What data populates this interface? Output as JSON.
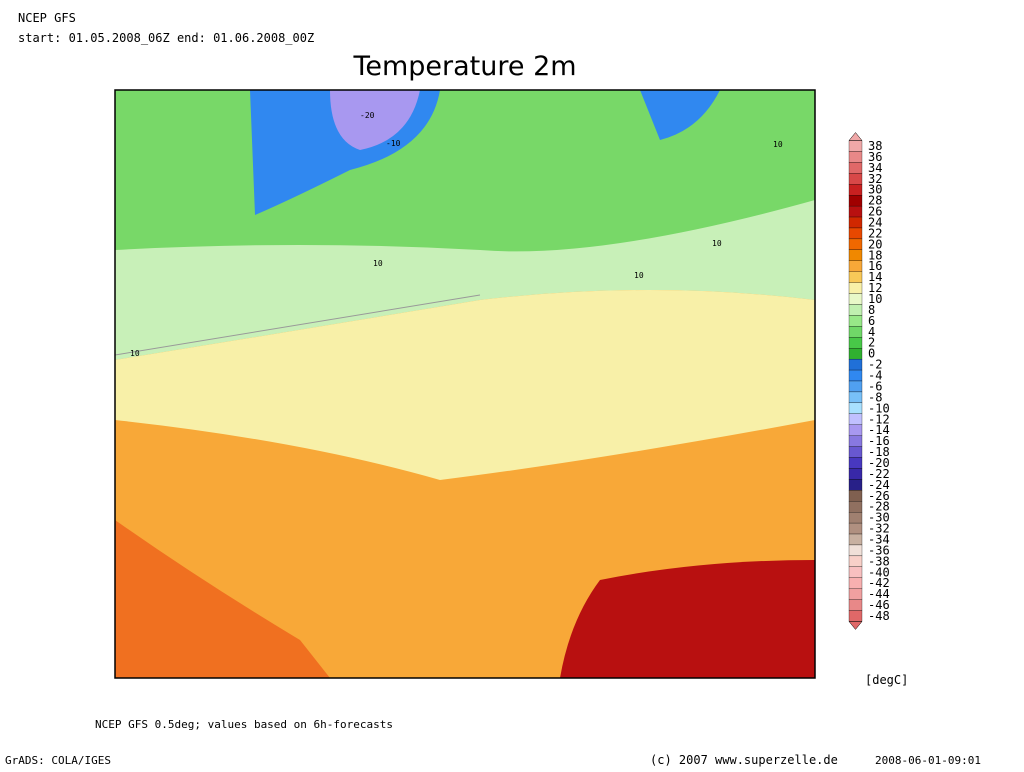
{
  "header": {
    "model": "NCEP GFS",
    "period": "start: 01.05.2008_06Z  end: 01.06.2008_00Z",
    "title": "Temperature 2m"
  },
  "colorbar": {
    "unit": "[degC]",
    "levels": [
      38,
      36,
      34,
      32,
      30,
      28,
      26,
      24,
      22,
      20,
      18,
      16,
      14,
      12,
      10,
      8,
      6,
      4,
      2,
      0,
      -2,
      -4,
      -6,
      -8,
      -10,
      -12,
      -14,
      -16,
      -18,
      -20,
      -22,
      -24,
      -26,
      -28,
      -30,
      -32,
      -34,
      -36,
      -38,
      -40,
      -42,
      -44,
      -46,
      -48
    ],
    "colors": [
      "#f0a8a8",
      "#e88888",
      "#e06868",
      "#d84848",
      "#c82020",
      "#a00000",
      "#b81010",
      "#d02800",
      "#e84800",
      "#f06800",
      "#f08800",
      "#f8a838",
      "#f8c858",
      "#f8f0a8",
      "#e8f8c8",
      "#c0f0b0",
      "#98e888",
      "#70d868",
      "#48c848",
      "#30b030",
      "#2070d8",
      "#3088f0",
      "#50a0f0",
      "#78c0f8",
      "#a8e0ff",
      "#c0c0ff",
      "#a898f0",
      "#8878e0",
      "#6858d0",
      "#4838c0",
      "#3828a8",
      "#282088",
      "#806050",
      "#907060",
      "#a08070",
      "#b09080",
      "#c8b0a0",
      "#f0e0d8",
      "#f8d0c8",
      "#f8c0c0",
      "#f8b0b0",
      "#f0a0a0",
      "#e88888",
      "#e06868"
    ]
  },
  "map": {
    "contour_labels": [
      "-20",
      "-10",
      "10",
      "10",
      "10",
      "10",
      "10"
    ]
  },
  "footer": {
    "note": "NCEP GFS 0.5deg; values based on 6h-forecasts",
    "software": "GrADS: COLA/IGES",
    "copyright": "(c) 2007 www.superzelle.de",
    "timestamp": "2008-06-01-09:01"
  }
}
